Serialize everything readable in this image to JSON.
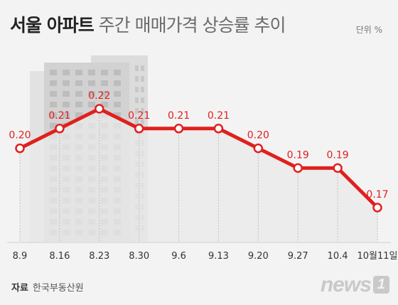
{
  "header": {
    "title_strong": "서울 아파트",
    "title_rest": "주간 매매가격 상승률 추이",
    "unit": "단위 %"
  },
  "source": {
    "label": "자료",
    "name": "한국부동산원"
  },
  "logo": {
    "word": "news",
    "number": "1"
  },
  "colors": {
    "line": "#e0201e",
    "background": "#f3f3f3",
    "area": "#e8e8e8"
  },
  "chart_data": {
    "type": "line",
    "categories": [
      "8.9",
      "8.16",
      "8.23",
      "8.30",
      "9.6",
      "9.13",
      "9.20",
      "9.27",
      "10.4",
      "10월11일"
    ],
    "values": [
      0.2,
      0.21,
      0.22,
      0.21,
      0.21,
      0.21,
      0.2,
      0.19,
      0.19,
      0.17
    ],
    "value_labels": [
      "0.20",
      "0.21",
      "0.22",
      "0.21",
      "0.21",
      "0.21",
      "0.20",
      "0.19",
      "0.19",
      "0.17"
    ],
    "title": "서울 아파트 주간 매매가격 상승률 추이",
    "ylabel": "단위 %",
    "xlabel": "",
    "grid": "vertical dashed",
    "legend": "none"
  }
}
